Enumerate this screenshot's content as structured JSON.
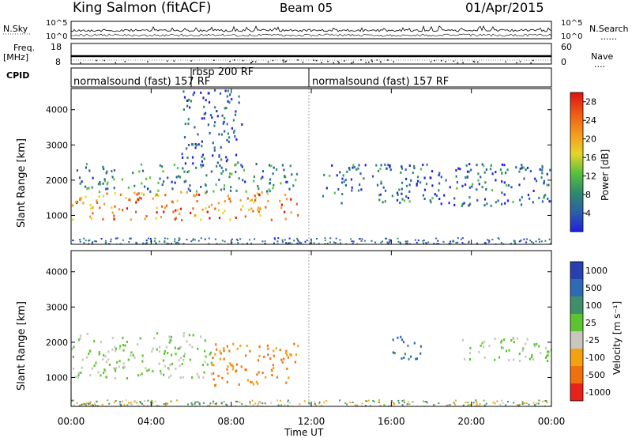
{
  "header": {
    "station": "King Salmon (fitACF)",
    "beam": "Beam 05",
    "date": "01/Apr/2015"
  },
  "side_labels": {
    "nsky": "N.Sky",
    "nsearch": "N.Search",
    "freq": "Freq.",
    "mhz": "[MHz]",
    "nave": "Nave",
    "cpid": "CPID",
    "dots": "......",
    "dots_short": "...."
  },
  "cpid_labels": {
    "first": "normalsound (fast) 157 RF",
    "middle": "rbsp 200 RF",
    "second": "normalsound (fast) 157 RF"
  },
  "noise_axis": {
    "left_top": "10^5",
    "left_bottom": "10^0",
    "right_top": "10^5",
    "right_bottom": "10^0"
  },
  "freq_axis": {
    "left_top": "18",
    "left_bottom": "8",
    "right_top": "60",
    "right_bottom": "0"
  },
  "chart_data": [
    {
      "type": "heatmap",
      "title": "",
      "xlabel": "Time UT",
      "ylabel": "Slant Range [km]",
      "x_ticks": [
        "00:00",
        "04:00",
        "08:00",
        "12:00",
        "16:00",
        "20:00",
        "00:00"
      ],
      "x_range_hours": [
        0,
        24
      ],
      "ylim": [
        180,
        4600
      ],
      "y_ticks": [
        1000,
        2000,
        3000,
        4000
      ],
      "colorbar": {
        "label": "Power [dB]",
        "ticks": [
          4,
          8,
          12,
          16,
          20,
          24,
          28
        ],
        "range": [
          0,
          30
        ],
        "colors": [
          "#1f1fe0",
          "#2c5fa8",
          "#2e8a6c",
          "#56c23d",
          "#e8d42a",
          "#f59a1e",
          "#ef5a14",
          "#e01010"
        ]
      },
      "regions": [
        {
          "t0": 0,
          "t1": 11.3,
          "r0": 900,
          "r1": 1700,
          "value": 22
        },
        {
          "t0": 0.2,
          "t1": 11.3,
          "r0": 1700,
          "r1": 2500,
          "value": 9
        },
        {
          "t0": 5.5,
          "t1": 8.5,
          "r0": 2500,
          "r1": 4600,
          "value": 5
        },
        {
          "t0": 12.5,
          "t1": 24,
          "r0": 1300,
          "r1": 2500,
          "value": 6
        }
      ]
    },
    {
      "type": "heatmap",
      "title": "",
      "xlabel": "Time UT",
      "ylabel": "Slant Range [km]",
      "x_ticks": [
        "00:00",
        "04:00",
        "08:00",
        "12:00",
        "16:00",
        "20:00",
        "00:00"
      ],
      "x_range_hours": [
        0,
        24
      ],
      "ylim": [
        180,
        4600
      ],
      "y_ticks": [
        1000,
        2000,
        3000,
        4000
      ],
      "colorbar": {
        "label": "Velocity [m s⁻¹]",
        "tick_labels": [
          "1000",
          "500",
          "100",
          "25",
          "-25",
          "-100",
          "-500",
          "-1000"
        ],
        "colors": [
          "#2a3fb0",
          "#2f6bb5",
          "#3f8f6a",
          "#5cc430",
          "#c9c6bd",
          "#f5a10f",
          "#f07010",
          "#e8221a"
        ]
      },
      "regions": [
        {
          "t0": 0,
          "t1": 7,
          "r0": 1000,
          "r1": 2300,
          "value": 0
        },
        {
          "t0": 7,
          "t1": 11.3,
          "r0": 800,
          "r1": 2000,
          "value": -300
        },
        {
          "t0": 16,
          "t1": 17.5,
          "r0": 1500,
          "r1": 2200,
          "value": 400
        },
        {
          "t0": 19.5,
          "t1": 24,
          "r0": 1500,
          "r1": 2200,
          "value": 0
        }
      ]
    }
  ]
}
